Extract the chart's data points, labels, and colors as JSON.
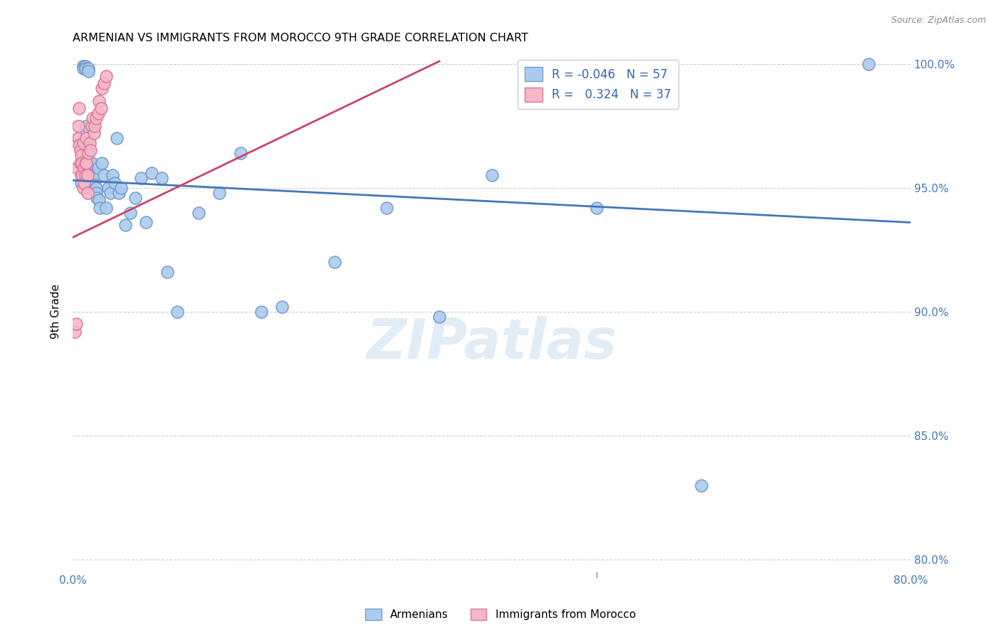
{
  "title": "ARMENIAN VS IMMIGRANTS FROM MOROCCO 9TH GRADE CORRELATION CHART",
  "source": "Source: ZipAtlas.com",
  "ylabel": "9th Grade",
  "xlim": [
    0.0,
    0.8
  ],
  "ylim": [
    0.795,
    1.005
  ],
  "yticks": [
    0.8,
    0.85,
    0.9,
    0.95,
    1.0
  ],
  "ytick_labels": [
    "80.0%",
    "85.0%",
    "90.0%",
    "95.0%",
    "100.0%"
  ],
  "xtick_labels": [
    "0.0%",
    "",
    "",
    "",
    "",
    "",
    "",
    "",
    "80.0%"
  ],
  "legend_r_blue": "-0.046",
  "legend_n_blue": "57",
  "legend_r_pink": "0.324",
  "legend_n_pink": "37",
  "blue_color": "#aaccee",
  "pink_color": "#f4b8c8",
  "blue_edge_color": "#7799cc",
  "pink_edge_color": "#dd7799",
  "blue_line_color": "#4477bb",
  "pink_line_color": "#cc4466",
  "watermark": "ZIPatlas",
  "blue_trend_x": [
    0.0,
    0.8
  ],
  "blue_trend_y": [
    0.953,
    0.936
  ],
  "pink_trend_x": [
    0.0,
    0.35
  ],
  "pink_trend_y": [
    0.93,
    1.001
  ],
  "blue_x": [
    0.005,
    0.008,
    0.01,
    0.01,
    0.01,
    0.012,
    0.012,
    0.013,
    0.013,
    0.014,
    0.015,
    0.015,
    0.015,
    0.016,
    0.016,
    0.017,
    0.018,
    0.019,
    0.02,
    0.021,
    0.022,
    0.022,
    0.023,
    0.024,
    0.025,
    0.026,
    0.028,
    0.03,
    0.032,
    0.034,
    0.036,
    0.038,
    0.04,
    0.042,
    0.044,
    0.046,
    0.05,
    0.055,
    0.06,
    0.065,
    0.07,
    0.075,
    0.085,
    0.09,
    0.1,
    0.12,
    0.14,
    0.16,
    0.18,
    0.2,
    0.25,
    0.3,
    0.35,
    0.4,
    0.5,
    0.6,
    0.76
  ],
  "blue_y": [
    0.97,
    0.952,
    0.999,
    0.999,
    0.998,
    0.999,
    0.998,
    0.975,
    0.965,
    0.968,
    0.998,
    0.997,
    0.965,
    0.96,
    0.953,
    0.95,
    0.96,
    0.956,
    0.955,
    0.951,
    0.95,
    0.948,
    0.946,
    0.958,
    0.945,
    0.942,
    0.96,
    0.955,
    0.942,
    0.95,
    0.948,
    0.955,
    0.952,
    0.97,
    0.948,
    0.95,
    0.935,
    0.94,
    0.946,
    0.954,
    0.936,
    0.956,
    0.954,
    0.916,
    0.9,
    0.94,
    0.948,
    0.964,
    0.9,
    0.902,
    0.92,
    0.942,
    0.898,
    0.955,
    0.942,
    0.83,
    1.0
  ],
  "pink_x": [
    0.002,
    0.003,
    0.004,
    0.005,
    0.005,
    0.006,
    0.006,
    0.007,
    0.007,
    0.008,
    0.008,
    0.009,
    0.009,
    0.01,
    0.01,
    0.011,
    0.011,
    0.012,
    0.012,
    0.013,
    0.013,
    0.014,
    0.014,
    0.015,
    0.016,
    0.017,
    0.018,
    0.019,
    0.02,
    0.021,
    0.022,
    0.024,
    0.025,
    0.027,
    0.028,
    0.03,
    0.032
  ],
  "pink_y": [
    0.892,
    0.895,
    0.958,
    0.975,
    0.97,
    0.982,
    0.967,
    0.965,
    0.96,
    0.963,
    0.955,
    0.96,
    0.955,
    0.968,
    0.95,
    0.958,
    0.952,
    0.96,
    0.955,
    0.97,
    0.96,
    0.955,
    0.948,
    0.964,
    0.968,
    0.965,
    0.975,
    0.978,
    0.972,
    0.975,
    0.978,
    0.98,
    0.985,
    0.982,
    0.99,
    0.992,
    0.995
  ]
}
